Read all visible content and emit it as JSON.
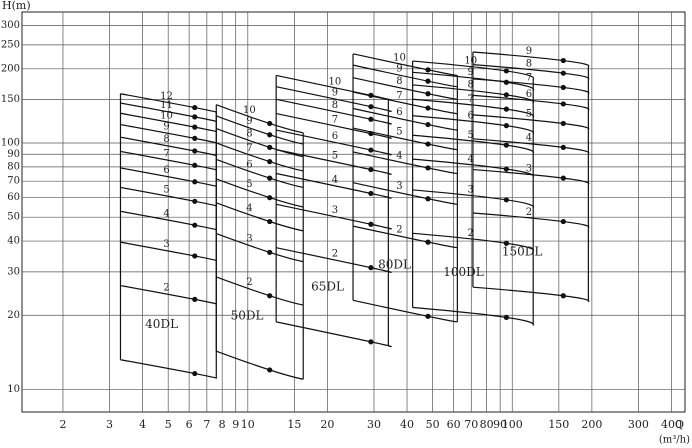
{
  "chart_data": {
    "type": "pump-curves",
    "y_label": "H(m)",
    "x_label": "Q",
    "x_unit": "(m³/h)",
    "log_x": true,
    "log_y": true,
    "grid": true,
    "xlim": [
      1.4,
      450
    ],
    "ylim": [
      8.1,
      340
    ],
    "xticks": [
      2,
      3,
      4,
      5,
      6,
      7,
      8,
      9,
      10,
      15,
      20,
      30,
      40,
      50,
      60,
      70,
      80,
      90,
      100,
      150,
      200,
      300,
      400
    ],
    "yticks": [
      10,
      20,
      30,
      40,
      50,
      60,
      70,
      80,
      90,
      100,
      150,
      200,
      250,
      300
    ],
    "models": [
      {
        "name": "40DL",
        "q": [
          3.3,
          6.3,
          7.6
        ],
        "stages": [
          {
            "label": null,
            "values": [
              13.2,
              11.6,
              11.1
            ]
          },
          {
            "label": "2",
            "values": [
              26.4,
              23.2,
              22.2
            ]
          },
          {
            "label": "3",
            "values": [
              39.6,
              34.8,
              33.3
            ]
          },
          {
            "label": "4",
            "values": [
              52.8,
              46.4,
              44.4
            ]
          },
          {
            "label": "5",
            "values": [
              66,
              58,
              55.5
            ]
          },
          {
            "label": "6",
            "values": [
              79.2,
              69.6,
              66.6
            ]
          },
          {
            "label": "7",
            "values": [
              92.4,
              81.2,
              77.7
            ]
          },
          {
            "label": "8",
            "values": [
              105.6,
              92.8,
              88.8
            ]
          },
          {
            "label": "9",
            "values": [
              118.8,
              104.4,
              99.9
            ]
          },
          {
            "label": "10",
            "values": [
              132,
              116,
              111
            ]
          },
          {
            "label": "11",
            "values": [
              145.2,
              127.6,
              122.1
            ]
          },
          {
            "label": "12",
            "values": [
              158.4,
              139.2,
              133.2
            ]
          }
        ]
      },
      {
        "name": "50DL",
        "q": [
          7.6,
          12.1,
          16.2
        ],
        "stages": [
          {
            "label": null,
            "values": [
              14.3,
              12,
              11
            ]
          },
          {
            "label": "2",
            "values": [
              28.6,
              24,
              22
            ]
          },
          {
            "label": "3",
            "values": [
              42.9,
              36,
              33
            ]
          },
          {
            "label": "4",
            "values": [
              57.2,
              48,
              44
            ]
          },
          {
            "label": "5",
            "values": [
              71.5,
              60,
              55
            ]
          },
          {
            "label": "6",
            "values": [
              85.8,
              72,
              66
            ]
          },
          {
            "label": "7",
            "values": [
              100.1,
              84,
              77
            ]
          },
          {
            "label": "8",
            "values": [
              114.4,
              96,
              88
            ]
          },
          {
            "label": "9",
            "values": [
              128.7,
              108,
              99
            ]
          },
          {
            "label": "10",
            "values": [
              143,
              120,
              110
            ]
          }
        ]
      },
      {
        "name": "65DL",
        "q": [
          12.8,
          29.2,
          34
        ],
        "stages": [
          {
            "label": null,
            "values": [
              18.8,
              15.6,
              15
            ]
          },
          {
            "label": "2",
            "values": [
              37.6,
              31.2,
              30
            ]
          },
          {
            "label": "3",
            "values": [
              56.4,
              46.8,
              45
            ]
          },
          {
            "label": "4",
            "values": [
              75.2,
              62.4,
              60
            ]
          },
          {
            "label": "5",
            "values": [
              94,
              78,
              75
            ]
          },
          {
            "label": "6",
            "values": [
              112.8,
              93.6,
              90
            ]
          },
          {
            "label": "7",
            "values": [
              131.6,
              109.2,
              105
            ]
          },
          {
            "label": "8",
            "values": [
              150.4,
              124.8,
              120
            ]
          },
          {
            "label": "9",
            "values": [
              169.2,
              140.4,
              135
            ]
          },
          {
            "label": "10",
            "values": [
              188,
              156,
              150
            ]
          }
        ]
      },
      {
        "name": "80DL",
        "q": [
          25,
          48,
          62
        ],
        "stages": [
          {
            "label": null,
            "values": [
              23,
              19.8,
              18.8
            ]
          },
          {
            "label": "2",
            "values": [
              46,
              39.6,
              37.6
            ]
          },
          {
            "label": "3",
            "values": [
              69,
              59.4,
              56.4
            ]
          },
          {
            "label": "4",
            "values": [
              92,
              79.2,
              75.2
            ]
          },
          {
            "label": "5",
            "values": [
              115,
              99,
              94
            ]
          },
          {
            "label": "6",
            "values": [
              138,
              118.8,
              112.8
            ]
          },
          {
            "label": "7",
            "values": [
              161,
              138.6,
              131.6
            ]
          },
          {
            "label": "8",
            "values": [
              184,
              158.4,
              150.4
            ]
          },
          {
            "label": "9",
            "values": [
              207,
              178.2,
              169.2
            ]
          },
          {
            "label": "10",
            "values": [
              230,
              198,
              188
            ]
          }
        ]
      },
      {
        "name": "100DL",
        "q": [
          42,
          95,
          120
        ],
        "stages": [
          {
            "label": null,
            "values": [
              21.5,
              19.6,
              18.2
            ]
          },
          {
            "label": "2",
            "values": [
              43,
              39.2,
              36.4
            ]
          },
          {
            "label": "3",
            "values": [
              64.5,
              58.8,
              54.6
            ]
          },
          {
            "label": "4",
            "values": [
              86,
              78.4,
              72.8
            ]
          },
          {
            "label": "5",
            "values": [
              107.5,
              98,
              91
            ]
          },
          {
            "label": "6",
            "values": [
              129,
              117.6,
              109.2
            ]
          },
          {
            "label": "7",
            "values": [
              150.5,
              137.2,
              127.4
            ]
          },
          {
            "label": "8",
            "values": [
              172,
              156.8,
              145.6
            ]
          },
          {
            "label": "9",
            "values": [
              193.5,
              176.4,
              163.8
            ]
          },
          {
            "label": "10",
            "values": [
              215,
              196,
              182
            ]
          }
        ]
      },
      {
        "name": "150DL",
        "q": [
          71,
          156,
          194
        ],
        "stages": [
          {
            "label": null,
            "values": [
              26,
              24,
              22.7
            ]
          },
          {
            "label": "2",
            "values": [
              52,
              48,
              45.4
            ]
          },
          {
            "label": "3",
            "values": [
              78,
              72,
              68.1
            ]
          },
          {
            "label": "4",
            "values": [
              104,
              96,
              90.8
            ]
          },
          {
            "label": "5",
            "values": [
              130,
              120,
              113.5
            ]
          },
          {
            "label": "6",
            "values": [
              156,
              144,
              136.2
            ]
          },
          {
            "label": "7",
            "values": [
              182,
              168,
              158.9
            ]
          },
          {
            "label": "8",
            "values": [
              208,
              192,
              181.6
            ]
          },
          {
            "label": "9",
            "values": [
              234,
              216,
              204.3
            ]
          }
        ]
      }
    ]
  }
}
